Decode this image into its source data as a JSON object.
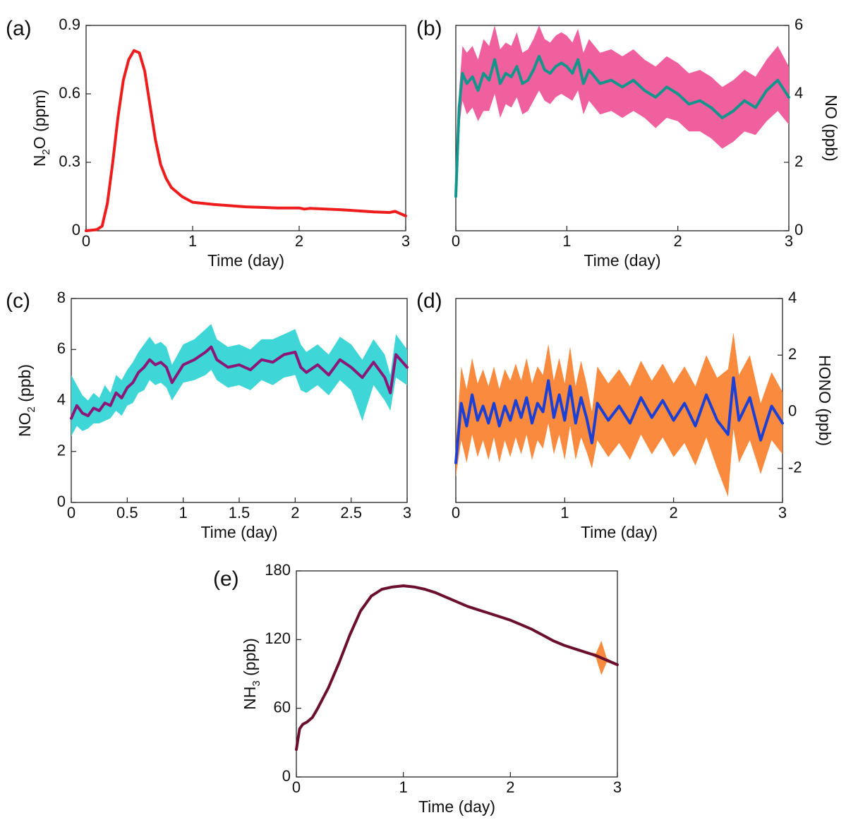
{
  "figure": {
    "panels_label": "five time-series panels"
  },
  "chart_data": [
    {
      "id": "a",
      "panel_label": "(a)",
      "type": "line",
      "ylabel_main": "N",
      "ylabel_sub": "2",
      "ylabel_tail": "O (ppm)",
      "xlabel": "Time (day)",
      "xlim": [
        0,
        3
      ],
      "ylim": [
        0,
        0.9
      ],
      "xticks": [
        0,
        1,
        2,
        3
      ],
      "xtick_labels": [
        "0",
        "1",
        "2",
        "3"
      ],
      "yticks": [
        0,
        0.3,
        0.6,
        0.9
      ],
      "ytick_labels": [
        "0",
        "0.3",
        "0.6",
        "0.9"
      ],
      "yaxis_side": "left",
      "series": [
        {
          "name": "N2O mean",
          "color": "#ee1c1c",
          "x": [
            0,
            0.1,
            0.15,
            0.2,
            0.25,
            0.3,
            0.35,
            0.4,
            0.45,
            0.5,
            0.55,
            0.6,
            0.65,
            0.7,
            0.75,
            0.8,
            0.9,
            1.0,
            1.2,
            1.5,
            1.8,
            2.0,
            2.05,
            2.1,
            2.4,
            2.7,
            2.85,
            2.9,
            3.0
          ],
          "values": [
            0.0,
            0.005,
            0.02,
            0.12,
            0.3,
            0.5,
            0.66,
            0.75,
            0.79,
            0.78,
            0.7,
            0.55,
            0.4,
            0.29,
            0.23,
            0.19,
            0.15,
            0.125,
            0.115,
            0.105,
            0.1,
            0.1,
            0.095,
            0.098,
            0.092,
            0.083,
            0.08,
            0.085,
            0.065
          ]
        }
      ]
    },
    {
      "id": "b",
      "panel_label": "(b)",
      "type": "line",
      "ylabel_main": "NO (ppb)",
      "xlabel": "Time (day)",
      "xlim": [
        0,
        3
      ],
      "ylim": [
        0,
        6
      ],
      "xticks": [
        0,
        1,
        2,
        3
      ],
      "xtick_labels": [
        "0",
        "1",
        "2",
        "3"
      ],
      "yticks": [
        0,
        2,
        4,
        6
      ],
      "ytick_labels": [
        "0",
        "2",
        "4",
        "6"
      ],
      "yaxis_side": "right",
      "band_color": "#f0609e",
      "series": [
        {
          "name": "NO mean",
          "color": "#13958c",
          "x": [
            0,
            0.03,
            0.06,
            0.1,
            0.15,
            0.2,
            0.25,
            0.3,
            0.35,
            0.4,
            0.45,
            0.5,
            0.55,
            0.6,
            0.65,
            0.7,
            0.75,
            0.8,
            0.85,
            0.9,
            0.95,
            1.0,
            1.05,
            1.1,
            1.15,
            1.2,
            1.3,
            1.4,
            1.5,
            1.6,
            1.7,
            1.8,
            1.9,
            2.0,
            2.1,
            2.2,
            2.3,
            2.4,
            2.5,
            2.6,
            2.7,
            2.8,
            2.9,
            3.0
          ],
          "values": [
            1.0,
            3.6,
            4.6,
            4.3,
            4.5,
            4.1,
            4.6,
            4.4,
            5.0,
            4.3,
            4.6,
            4.5,
            4.8,
            4.3,
            4.4,
            4.7,
            5.1,
            4.7,
            4.6,
            4.8,
            4.9,
            4.8,
            4.6,
            5.0,
            4.3,
            4.7,
            4.3,
            4.4,
            4.2,
            4.4,
            4.1,
            3.9,
            4.2,
            4.0,
            3.7,
            3.8,
            3.6,
            3.3,
            3.5,
            3.8,
            3.6,
            4.1,
            4.4,
            3.9
          ],
          "lower": [
            0.9,
            3.0,
            3.8,
            3.4,
            3.6,
            3.2,
            3.5,
            3.5,
            4.0,
            3.3,
            3.7,
            3.6,
            3.9,
            3.4,
            3.5,
            3.8,
            4.1,
            3.8,
            3.7,
            3.9,
            4.0,
            3.9,
            3.8,
            4.1,
            3.4,
            3.8,
            3.4,
            3.5,
            3.3,
            3.5,
            3.3,
            3.0,
            3.3,
            3.2,
            2.9,
            2.9,
            2.7,
            2.4,
            2.6,
            2.9,
            2.8,
            3.2,
            3.5,
            3.1
          ],
          "upper": [
            1.1,
            4.1,
            5.4,
            5.2,
            5.4,
            5.0,
            5.6,
            5.4,
            6.0,
            5.3,
            5.5,
            5.4,
            5.8,
            5.2,
            5.3,
            5.6,
            6.0,
            5.6,
            5.5,
            5.7,
            5.8,
            5.7,
            5.5,
            5.9,
            5.2,
            5.6,
            5.2,
            5.3,
            5.1,
            5.3,
            5.0,
            4.8,
            5.1,
            4.9,
            4.6,
            4.7,
            4.5,
            4.2,
            4.4,
            4.7,
            4.5,
            5.0,
            5.4,
            4.8
          ]
        }
      ]
    },
    {
      "id": "c",
      "panel_label": "(c)",
      "type": "line",
      "ylabel_main": "NO",
      "ylabel_sub": "2",
      "ylabel_tail": " (ppb)",
      "xlabel": "Time (day)",
      "xlim": [
        0,
        3
      ],
      "ylim": [
        0,
        8
      ],
      "xticks": [
        0,
        0.5,
        1,
        1.5,
        2,
        2.5,
        3
      ],
      "xtick_labels": [
        "0",
        "0.5",
        "1",
        "1.5",
        "2",
        "2.5",
        "3"
      ],
      "yticks": [
        0,
        2,
        4,
        6,
        8
      ],
      "ytick_labels": [
        "0",
        "2",
        "4",
        "6",
        "8"
      ],
      "yaxis_side": "left",
      "band_color": "#3ed6d6",
      "series": [
        {
          "name": "NO2 mean",
          "color": "#8b1778",
          "x": [
            0,
            0.05,
            0.1,
            0.15,
            0.2,
            0.25,
            0.3,
            0.35,
            0.4,
            0.45,
            0.5,
            0.55,
            0.6,
            0.65,
            0.7,
            0.75,
            0.8,
            0.85,
            0.9,
            1.0,
            1.1,
            1.2,
            1.25,
            1.3,
            1.4,
            1.5,
            1.6,
            1.7,
            1.8,
            1.9,
            2.0,
            2.05,
            2.1,
            2.2,
            2.3,
            2.4,
            2.5,
            2.6,
            2.7,
            2.8,
            2.85,
            2.9,
            3.0
          ],
          "values": [
            3.3,
            3.8,
            3.5,
            3.4,
            3.7,
            3.6,
            3.9,
            3.8,
            4.3,
            4.1,
            4.5,
            4.7,
            5.1,
            5.3,
            5.6,
            5.4,
            5.5,
            5.3,
            4.7,
            5.4,
            5.6,
            5.9,
            6.1,
            5.6,
            5.3,
            5.4,
            5.2,
            5.6,
            5.5,
            5.8,
            5.9,
            5.3,
            5.1,
            5.4,
            5.0,
            5.6,
            5.3,
            4.9,
            5.5,
            4.9,
            4.3,
            5.8,
            5.3
          ],
          "lower": [
            2.6,
            3.0,
            2.8,
            2.9,
            3.1,
            3.1,
            3.2,
            3.3,
            3.6,
            3.4,
            3.8,
            3.9,
            4.3,
            4.4,
            4.8,
            4.6,
            4.7,
            4.5,
            4.0,
            4.7,
            4.8,
            5.0,
            5.2,
            4.8,
            4.5,
            4.6,
            4.4,
            4.8,
            4.6,
            4.9,
            5.0,
            4.4,
            4.3,
            4.6,
            4.2,
            4.8,
            4.4,
            3.2,
            4.6,
            4.0,
            3.6,
            4.9,
            4.6
          ],
          "upper": [
            5.0,
            4.6,
            4.2,
            4.0,
            4.3,
            4.1,
            4.6,
            4.3,
            5.0,
            4.8,
            5.2,
            5.5,
            5.9,
            6.2,
            6.5,
            6.2,
            6.3,
            6.1,
            5.4,
            6.2,
            6.4,
            6.8,
            7.0,
            6.4,
            6.1,
            6.2,
            6.0,
            6.4,
            6.4,
            6.6,
            6.8,
            6.2,
            5.9,
            6.2,
            5.8,
            6.5,
            6.2,
            5.6,
            6.4,
            5.8,
            5.0,
            6.6,
            6.0
          ]
        }
      ]
    },
    {
      "id": "d",
      "panel_label": "(d)",
      "type": "line",
      "ylabel_main": "HONO (ppb)",
      "xlabel": "Time (day)",
      "xlim": [
        0,
        3
      ],
      "ylim": [
        -3.2,
        4
      ],
      "xticks": [
        0,
        1,
        2,
        3
      ],
      "xtick_labels": [
        "0",
        "1",
        "2",
        "3"
      ],
      "yticks": [
        -2,
        0,
        2,
        4
      ],
      "ytick_labels": [
        "-2",
        "0",
        "2",
        "4"
      ],
      "yaxis_side": "right",
      "band_color": "#f98a3e",
      "series": [
        {
          "name": "HONO mean",
          "color": "#1c3fd4",
          "x": [
            0,
            0.05,
            0.1,
            0.15,
            0.2,
            0.25,
            0.3,
            0.35,
            0.4,
            0.45,
            0.5,
            0.55,
            0.6,
            0.65,
            0.7,
            0.75,
            0.8,
            0.85,
            0.9,
            0.95,
            1.0,
            1.05,
            1.1,
            1.15,
            1.2,
            1.25,
            1.3,
            1.4,
            1.5,
            1.6,
            1.7,
            1.8,
            1.9,
            2.0,
            2.1,
            2.2,
            2.3,
            2.4,
            2.5,
            2.55,
            2.6,
            2.7,
            2.8,
            2.9,
            3.0
          ],
          "values": [
            -1.8,
            0.3,
            -0.5,
            0.6,
            -0.3,
            0.2,
            -0.4,
            0.3,
            -0.5,
            0.2,
            -0.3,
            0.4,
            -0.2,
            0.5,
            -0.4,
            0.3,
            0.0,
            1.1,
            -0.2,
            0.6,
            -0.3,
            0.9,
            -0.4,
            0.5,
            -0.2,
            -1.1,
            0.3,
            -0.3,
            0.2,
            -0.4,
            0.5,
            -0.2,
            0.4,
            -0.3,
            0.3,
            -0.5,
            0.6,
            -0.3,
            -0.8,
            1.2,
            -0.3,
            0.5,
            -1.0,
            0.2,
            -0.4
          ],
          "lower": [
            -2.3,
            -1.0,
            -1.8,
            -0.8,
            -1.6,
            -1.0,
            -1.7,
            -0.9,
            -1.8,
            -1.0,
            -1.6,
            -0.9,
            -1.5,
            -0.8,
            -1.7,
            -1.0,
            -1.3,
            -0.4,
            -1.5,
            -0.8,
            -1.7,
            -0.5,
            -1.7,
            -0.9,
            -1.4,
            -2.0,
            -1.0,
            -1.6,
            -1.1,
            -1.7,
            -0.8,
            -1.5,
            -0.9,
            -1.6,
            -1.1,
            -1.9,
            -0.9,
            -2.0,
            -3.0,
            -0.6,
            -1.8,
            -1.0,
            -2.2,
            -1.0,
            -1.5
          ],
          "upper": [
            -1.2,
            1.6,
            0.8,
            1.9,
            1.0,
            1.5,
            0.9,
            1.6,
            0.8,
            1.5,
            1.1,
            1.7,
            1.1,
            1.9,
            1.0,
            1.6,
            1.3,
            2.4,
            1.1,
            1.9,
            1.0,
            2.3,
            0.9,
            1.8,
            1.0,
            0.0,
            1.6,
            1.0,
            1.5,
            0.9,
            1.8,
            1.1,
            1.7,
            1.0,
            1.6,
            0.9,
            2.0,
            1.2,
            1.5,
            2.8,
            1.3,
            2.0,
            0.3,
            1.4,
            0.7
          ]
        }
      ]
    },
    {
      "id": "e",
      "panel_label": "(e)",
      "type": "line",
      "ylabel_main": "NH",
      "ylabel_sub": "3",
      "ylabel_tail": " (ppb)",
      "xlabel": "Time (day)",
      "xlim": [
        0,
        3
      ],
      "ylim": [
        0,
        180
      ],
      "xticks": [
        0,
        1,
        2,
        3
      ],
      "xtick_labels": [
        "0",
        "1",
        "2",
        "3"
      ],
      "yticks": [
        0,
        60,
        120,
        180
      ],
      "ytick_labels": [
        "0",
        "60",
        "120",
        "180"
      ],
      "yaxis_side": "left",
      "band_color": "#f98a3e",
      "series": [
        {
          "name": "NH3 mean",
          "color": "#6b0f2e",
          "x": [
            0,
            0.03,
            0.06,
            0.1,
            0.15,
            0.2,
            0.3,
            0.4,
            0.5,
            0.6,
            0.7,
            0.8,
            0.9,
            1.0,
            1.1,
            1.2,
            1.3,
            1.4,
            1.5,
            1.6,
            1.7,
            1.8,
            1.9,
            2.0,
            2.1,
            2.2,
            2.3,
            2.4,
            2.5,
            2.6,
            2.7,
            2.8,
            2.85,
            2.9,
            3.0
          ],
          "values": [
            24,
            42,
            46,
            48,
            52,
            60,
            78,
            100,
            124,
            145,
            158,
            164,
            166,
            167,
            166,
            164,
            161,
            157,
            153,
            149,
            146,
            143,
            140,
            137,
            133,
            129,
            124,
            119,
            115,
            112,
            109,
            106,
            104,
            102,
            98
          ],
          "lower": [
            24,
            42,
            46,
            48,
            52,
            60,
            78,
            100,
            124,
            145,
            158,
            164,
            166,
            167,
            166,
            164,
            161,
            157,
            153,
            149,
            146,
            143,
            140,
            137,
            133,
            129,
            124,
            119,
            115,
            112,
            109,
            104,
            89,
            100,
            98
          ],
          "upper": [
            24,
            42,
            46,
            48,
            52,
            60,
            78,
            100,
            124,
            145,
            158,
            164,
            166,
            167,
            166,
            164,
            161,
            157,
            153,
            149,
            146,
            143,
            140,
            137,
            133,
            129,
            124,
            119,
            115,
            112,
            109,
            108,
            119,
            104,
            98
          ]
        }
      ]
    }
  ]
}
